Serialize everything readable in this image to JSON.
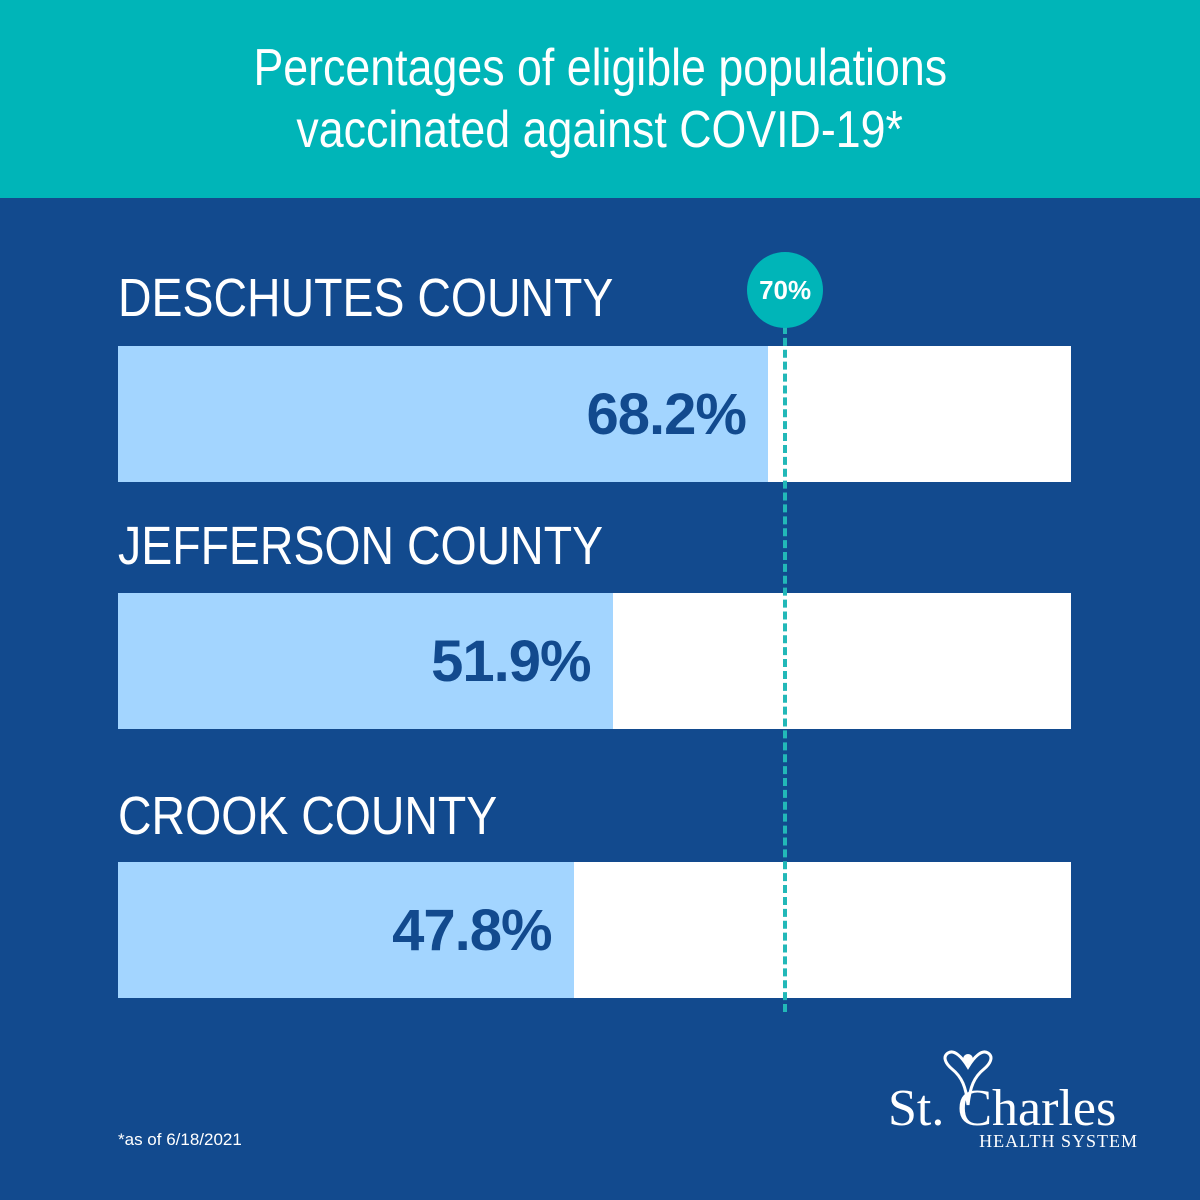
{
  "header": {
    "title_line1": "Percentages of eligible populations",
    "title_line2": "vaccinated against COVID-19*"
  },
  "chart_data": {
    "type": "bar",
    "orientation": "horizontal",
    "categories": [
      "DESCHUTES COUNTY",
      "JEFFERSON COUNTY",
      "CROOK COUNTY"
    ],
    "values": [
      68.2,
      51.9,
      47.8
    ],
    "value_labels": [
      "68.2%",
      "51.9%",
      "47.8%"
    ],
    "xlim": [
      0,
      100
    ],
    "unit": "%",
    "target": {
      "value": 70,
      "label": "70%"
    },
    "grid": false
  },
  "footnote": "*as of  6/18/2021",
  "logo": {
    "name": "St. Charles",
    "subtitle": "HEALTH SYSTEM"
  },
  "colors": {
    "background": "#124a8e",
    "header": "#00b5b8",
    "bar_fill": "#a3d5ff",
    "bar_track": "#ffffff",
    "value_text": "#124a8e",
    "target": "#22b8b8"
  }
}
